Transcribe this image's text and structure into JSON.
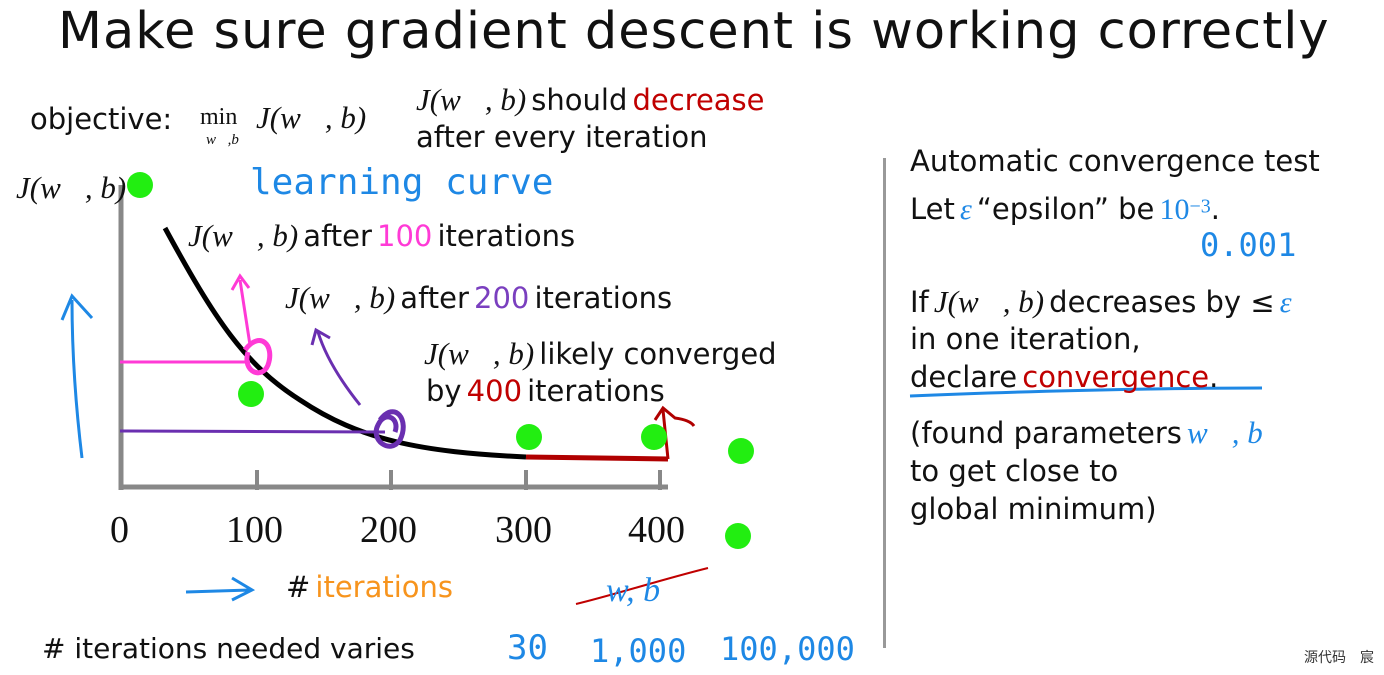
{
  "title": "Make sure gradient descent is working correctly",
  "objective": {
    "label": "objective:",
    "min": "min",
    "sub": "w⃗,b",
    "expr": "J(w⃗, b)"
  },
  "should": {
    "expr": "J(w⃗, b)",
    "text1": "should",
    "highlight": "decrease",
    "line2": "after every iteration"
  },
  "plot": {
    "ylabel": "J(w⃗, b)",
    "xticks": [
      "0",
      "100",
      "200",
      "300",
      "400"
    ],
    "handwritten_title": "learning curve",
    "xlabel_hash": "#",
    "xlabel_word": "iterations",
    "crossed": "w, b",
    "ann100": {
      "expr": "J(w⃗, b)",
      "pre": "after",
      "num": "100",
      "post": "iterations"
    },
    "ann200": {
      "expr": "J(w⃗, b)",
      "pre": "after",
      "num": "200",
      "post": "iterations"
    },
    "ann400": {
      "expr": "J(w⃗, b)",
      "line1": "likely converged",
      "pre": "by",
      "num": "400",
      "post": "iterations"
    }
  },
  "bottom": {
    "text": "# iterations needed varies",
    "v1": "30",
    "v2": "1,000",
    "v3": "100,000"
  },
  "right": {
    "heading": "Automatic convergence test",
    "let_pre": "Let",
    "eps": "ε",
    "epsilon_text": "“epsilon” be",
    "ten": "10",
    "exp": "−3",
    "period": ".",
    "hand_value": "0.001",
    "if_pre": "If",
    "if_expr": "J(w⃗, b)",
    "if_post": "decreases by ≤",
    "if_eps": "ε",
    "line_in": "in one iteration,",
    "declare": "declare",
    "convergence": "convergence",
    "dot": ".",
    "found1": "(found parameters",
    "found_vec": "w⃗, b",
    "found2": "to get close to",
    "found3": "global minimum)"
  },
  "watermark": "源代码　宸",
  "colors": {
    "green_dots": "#22ee11",
    "blue_ink": "#1e88e5",
    "red": "#c00000",
    "pink": "#ff3ad6",
    "purple": "#7a3fbf",
    "orange": "#f7941d"
  }
}
